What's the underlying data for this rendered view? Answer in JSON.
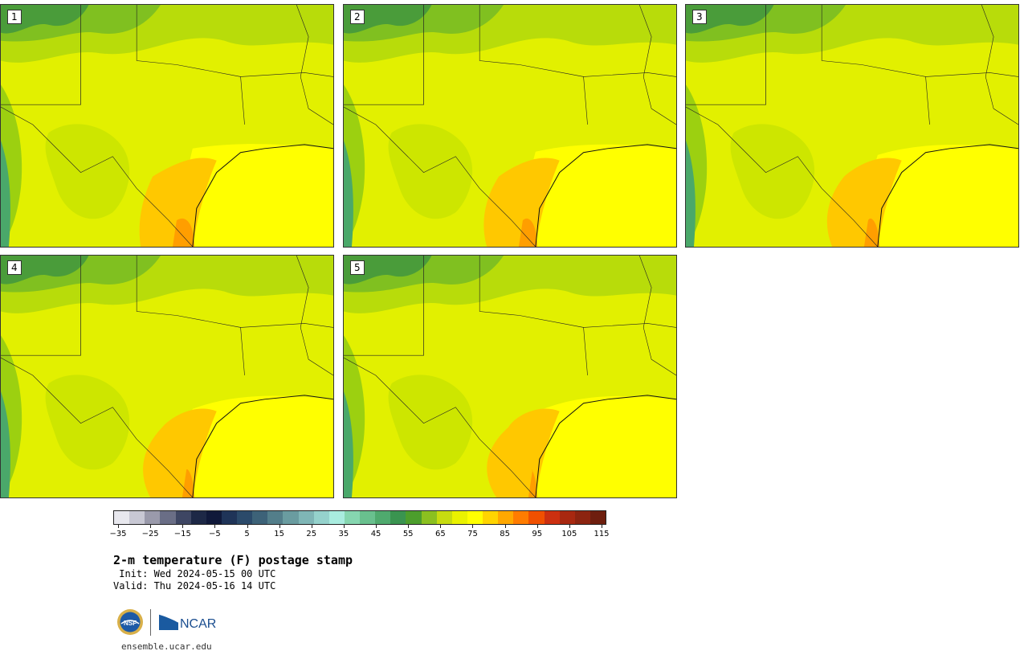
{
  "panels": [
    {
      "label": "1"
    },
    {
      "label": "2"
    },
    {
      "label": "3"
    },
    {
      "label": "4"
    },
    {
      "label": "5"
    }
  ],
  "colorbar": {
    "colors": [
      "#e8e8ee",
      "#c8c8d4",
      "#9a9aab",
      "#6a6e86",
      "#3e4663",
      "#1d2846",
      "#10193a",
      "#1f3458",
      "#2b4a6a",
      "#3d6278",
      "#537e8a",
      "#6a9ca0",
      "#7fb6b6",
      "#95d2cc",
      "#a9ecdf",
      "#86d6b0",
      "#69c08e",
      "#4faa6e",
      "#3a9450",
      "#4c9e2c",
      "#8bc020",
      "#c7dc10",
      "#eaf200",
      "#ffff00",
      "#ffd400",
      "#ffa800",
      "#ff7c00",
      "#f05000",
      "#cc3010",
      "#a82810",
      "#8c2410",
      "#6e1e0e"
    ],
    "tick_labels": [
      "−35",
      "−25",
      "−15",
      "−5",
      "5",
      "15",
      "25",
      "35",
      "45",
      "55",
      "65",
      "75",
      "85",
      "95",
      "105",
      "115"
    ]
  },
  "title": "2-m temperature (F) postage stamp",
  "init": " Init: Wed 2024-05-15 00 UTC",
  "valid": "Valid: Thu 2024-05-16 14 UTC",
  "footer": {
    "url": "ensemble.ucar.edu",
    "logo_left": "NSF",
    "logo_right": "NCAR"
  }
}
